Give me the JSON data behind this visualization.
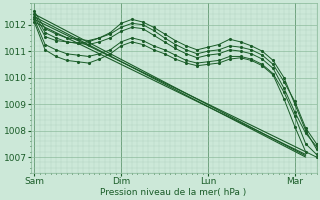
{
  "bg_color": "#cce8d8",
  "line_color": "#1a5c28",
  "grid_color_minor": "#aacfba",
  "grid_color_major": "#88b898",
  "text_color": "#1a5c28",
  "xlabel": "Pression niveau de la mer( hPa )",
  "x_ticks_labels": [
    "Sam",
    "Dim",
    "Lun",
    "Mar"
  ],
  "x_ticks_pos": [
    0,
    48,
    96,
    144
  ],
  "ylim": [
    1006.4,
    1012.8
  ],
  "xlim": [
    -2,
    156
  ],
  "yticks": [
    1007,
    1008,
    1009,
    1010,
    1011,
    1012
  ],
  "straight_lines": [
    {
      "x": [
        0,
        150
      ],
      "y": [
        1012.3,
        1007.0
      ]
    },
    {
      "x": [
        0,
        150
      ],
      "y": [
        1012.2,
        1007.2
      ]
    },
    {
      "x": [
        0,
        150
      ],
      "y": [
        1012.1,
        1007.1
      ]
    },
    {
      "x": [
        0,
        150
      ],
      "y": [
        1012.4,
        1007.05
      ]
    }
  ],
  "wavy_x": [
    0,
    6,
    12,
    18,
    24,
    30,
    36,
    42,
    48,
    54,
    60,
    66,
    72,
    78,
    84,
    90,
    96,
    102,
    108,
    114,
    120,
    126,
    132,
    138,
    144,
    150,
    156
  ],
  "wavy_series": [
    [
      1012.3,
      1011.55,
      1011.4,
      1011.35,
      1011.3,
      1011.35,
      1011.5,
      1011.7,
      1012.05,
      1012.2,
      1012.1,
      1011.9,
      1011.65,
      1011.4,
      1011.2,
      1011.05,
      1011.15,
      1011.25,
      1011.45,
      1011.35,
      1011.2,
      1011.0,
      1010.65,
      1010.0,
      1009.0,
      1008.0,
      1007.3
    ],
    [
      1012.2,
      1011.25,
      1011.05,
      1010.9,
      1010.85,
      1010.8,
      1010.9,
      1011.05,
      1011.35,
      1011.5,
      1011.4,
      1011.2,
      1011.05,
      1010.85,
      1010.65,
      1010.55,
      1010.6,
      1010.65,
      1010.8,
      1010.8,
      1010.7,
      1010.5,
      1010.15,
      1009.45,
      1008.55,
      1007.5,
      1007.1
    ],
    [
      1012.1,
      1011.05,
      1010.8,
      1010.65,
      1010.6,
      1010.55,
      1010.7,
      1010.9,
      1011.2,
      1011.35,
      1011.25,
      1011.05,
      1010.9,
      1010.7,
      1010.55,
      1010.45,
      1010.5,
      1010.55,
      1010.7,
      1010.75,
      1010.65,
      1010.45,
      1010.1,
      1009.2,
      1008.15,
      1007.2,
      1007.0
    ],
    [
      1012.4,
      1011.7,
      1011.5,
      1011.35,
      1011.3,
      1011.25,
      1011.35,
      1011.5,
      1011.75,
      1011.9,
      1011.85,
      1011.6,
      1011.35,
      1011.1,
      1010.9,
      1010.75,
      1010.85,
      1010.9,
      1011.05,
      1011.0,
      1010.9,
      1010.7,
      1010.35,
      1009.6,
      1008.7,
      1007.9,
      1007.4
    ],
    [
      1012.5,
      1011.85,
      1011.65,
      1011.5,
      1011.45,
      1011.4,
      1011.5,
      1011.65,
      1011.9,
      1012.05,
      1012.0,
      1011.78,
      1011.5,
      1011.25,
      1011.05,
      1010.9,
      1011.0,
      1011.05,
      1011.2,
      1011.15,
      1011.05,
      1010.85,
      1010.5,
      1009.85,
      1009.1,
      1008.1,
      1007.5
    ]
  ]
}
